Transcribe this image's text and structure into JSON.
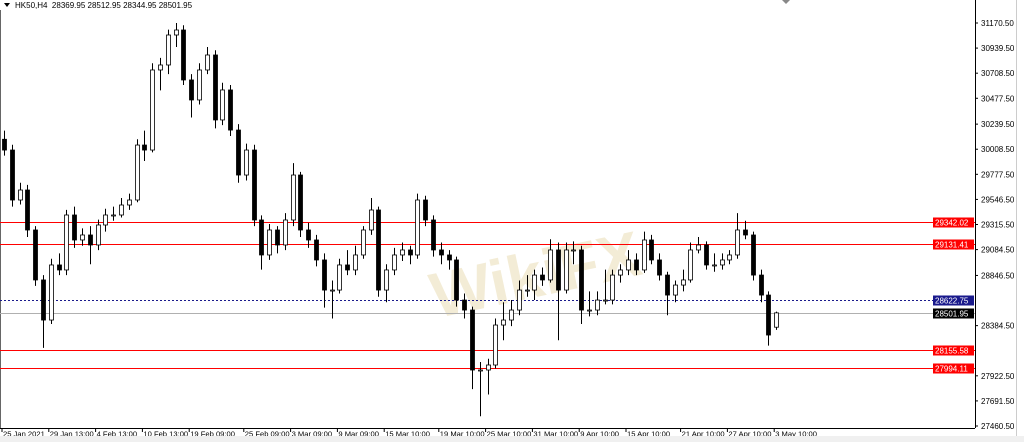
{
  "header": {
    "symbol": "HK50,H4",
    "ohlc": "28369.95 28512.95 28344.95 28501.95"
  },
  "watermark": "WikiFX",
  "colors": {
    "bull_body": "#ffffff",
    "bear_body": "#000000",
    "wick": "#000000",
    "level_line": "#ff0000",
    "ask_line": "#1a1a8c",
    "bid_line": "#b0b0b0"
  },
  "chart_data": {
    "type": "candlestick",
    "title": "HK50,H4",
    "ylim": [
      27460.5,
      31170.5
    ],
    "grid": false,
    "y_ticks": [
      "31170.50",
      "30939.50",
      "30708.50",
      "30477.50",
      "30239.50",
      "30008.50",
      "29777.50",
      "29546.50",
      "29315.50",
      "29084.50",
      "28846.50",
      "28384.50",
      "27922.50",
      "27691.50",
      "27460.50"
    ],
    "x_ticks": [
      {
        "bar": 0,
        "label": "25 Jan 2021"
      },
      {
        "bar": 6,
        "label": "29 Jan 13:00"
      },
      {
        "bar": 12,
        "label": "4 Feb 13:00"
      },
      {
        "bar": 18,
        "label": "10 Feb 13:00"
      },
      {
        "bar": 24,
        "label": "19 Feb 09:00"
      },
      {
        "bar": 31,
        "label": "25 Feb 09:00"
      },
      {
        "bar": 37,
        "label": "3 Mar 09:00"
      },
      {
        "bar": 43,
        "label": "9 Mar 09:00"
      },
      {
        "bar": 49,
        "label": "15 Mar 10:00"
      },
      {
        "bar": 56,
        "label": "19 Mar 10:00"
      },
      {
        "bar": 62,
        "label": "25 Mar 10:00"
      },
      {
        "bar": 68,
        "label": "31 Mar 10:00"
      },
      {
        "bar": 74,
        "label": "9 Apr 10:00"
      },
      {
        "bar": 80,
        "label": "15 Apr 10:00"
      },
      {
        "bar": 87,
        "label": "21 Apr 10:00"
      },
      {
        "bar": 93,
        "label": "27 Apr 10:00"
      },
      {
        "bar": 99,
        "label": "3 May 10:00"
      }
    ],
    "levels": [
      {
        "price": 29342.02,
        "label": "29342.02",
        "style": "level"
      },
      {
        "price": 29131.41,
        "label": "29131.41",
        "style": "level"
      },
      {
        "price": 28622.75,
        "label": "28622.75",
        "style": "ask"
      },
      {
        "price": 28501.95,
        "label": "28501.95",
        "style": "bid"
      },
      {
        "price": 28155.58,
        "label": "28155.58",
        "style": "level"
      },
      {
        "price": 27994.11,
        "label": "27994.11",
        "style": "level"
      }
    ],
    "candles_ohlc": [
      [
        30100,
        30180,
        29950,
        30001
      ],
      [
        30001,
        30050,
        29480,
        29541
      ],
      [
        29541,
        29700,
        29500,
        29633
      ],
      [
        29633,
        29680,
        29200,
        29265
      ],
      [
        29265,
        29300,
        28750,
        28805
      ],
      [
        28805,
        28850,
        28180,
        28436
      ],
      [
        28436,
        29000,
        28400,
        28943
      ],
      [
        28943,
        29050,
        28850,
        28897
      ],
      [
        28897,
        29450,
        28850,
        29403
      ],
      [
        29403,
        29480,
        29100,
        29173
      ],
      [
        29173,
        29280,
        29120,
        29219
      ],
      [
        29219,
        29300,
        28950,
        29127
      ],
      [
        29127,
        29360,
        29080,
        29311
      ],
      [
        29311,
        29460,
        29250,
        29403
      ],
      [
        29403,
        29480,
        29350,
        29403
      ],
      [
        29403,
        29560,
        29380,
        29495
      ],
      [
        29495,
        29600,
        29450,
        29541
      ],
      [
        29541,
        30100,
        29520,
        30047
      ],
      [
        30047,
        30180,
        29900,
        30001
      ],
      [
        30001,
        30800,
        29980,
        30738
      ],
      [
        30738,
        30850,
        30550,
        30784
      ],
      [
        30784,
        31110,
        30700,
        31060
      ],
      [
        31060,
        31170,
        30950,
        31106
      ],
      [
        31106,
        31150,
        30600,
        30646
      ],
      [
        30646,
        30700,
        30300,
        30462
      ],
      [
        30462,
        30800,
        30420,
        30738
      ],
      [
        30738,
        30950,
        30700,
        30876
      ],
      [
        30876,
        30920,
        30200,
        30278
      ],
      [
        30278,
        30620,
        30230,
        30554
      ],
      [
        30554,
        30600,
        30130,
        30185
      ],
      [
        30185,
        30240,
        29700,
        29771
      ],
      [
        29771,
        30060,
        29720,
        30001
      ],
      [
        30001,
        30050,
        29300,
        29357
      ],
      [
        29357,
        29400,
        28900,
        29035
      ],
      [
        29035,
        29320,
        28990,
        29265
      ],
      [
        29265,
        29300,
        29050,
        29127
      ],
      [
        29127,
        29420,
        29080,
        29357
      ],
      [
        29357,
        29880,
        29300,
        29771
      ],
      [
        29771,
        29800,
        29200,
        29265
      ],
      [
        29265,
        29330,
        29100,
        29173
      ],
      [
        29173,
        29220,
        28930,
        28989
      ],
      [
        28989,
        29050,
        28550,
        28712
      ],
      [
        28712,
        28800,
        28450,
        28712
      ],
      [
        28712,
        29000,
        28680,
        28943
      ],
      [
        28943,
        29080,
        28850,
        28897
      ],
      [
        28897,
        29120,
        28850,
        29035
      ],
      [
        29035,
        29300,
        29000,
        29265
      ],
      [
        29265,
        29560,
        29220,
        29449
      ],
      [
        29449,
        29480,
        28650,
        28712
      ],
      [
        28712,
        28950,
        28600,
        28897
      ],
      [
        28897,
        29100,
        28850,
        29035
      ],
      [
        29035,
        29150,
        28980,
        29081
      ],
      [
        29081,
        29120,
        28950,
        29035
      ],
      [
        29035,
        29600,
        29000,
        29541
      ],
      [
        29541,
        29580,
        29300,
        29357
      ],
      [
        29357,
        29400,
        29020,
        29081
      ],
      [
        29081,
        29150,
        28950,
        29035
      ],
      [
        29035,
        29080,
        28900,
        28989
      ],
      [
        28989,
        29020,
        28560,
        28620
      ],
      [
        28620,
        28680,
        28450,
        28528
      ],
      [
        28528,
        28560,
        27800,
        27976
      ],
      [
        27976,
        28050,
        27550,
        27976
      ],
      [
        27976,
        28080,
        27750,
        28022
      ],
      [
        28022,
        28450,
        27990,
        28390
      ],
      [
        28390,
        28600,
        28250,
        28436
      ],
      [
        28436,
        28620,
        28380,
        28528
      ],
      [
        28528,
        28800,
        28480,
        28712
      ],
      [
        28712,
        28850,
        28650,
        28712
      ],
      [
        28712,
        28900,
        28620,
        28850
      ],
      [
        28850,
        28920,
        28750,
        28805
      ],
      [
        28805,
        29180,
        28780,
        29081
      ],
      [
        29081,
        29150,
        28250,
        28712
      ],
      [
        28712,
        29150,
        28680,
        29081
      ],
      [
        29081,
        29160,
        28950,
        29081
      ],
      [
        29081,
        29120,
        28400,
        28528
      ],
      [
        28528,
        28700,
        28470,
        28528
      ],
      [
        28528,
        28700,
        28480,
        28620
      ],
      [
        28620,
        28900,
        28580,
        28620
      ],
      [
        28620,
        28900,
        28580,
        28850
      ],
      [
        28850,
        28950,
        28780,
        28897
      ],
      [
        28897,
        29080,
        28850,
        28989
      ],
      [
        28989,
        29050,
        28850,
        28897
      ],
      [
        28897,
        29250,
        28870,
        29173
      ],
      [
        29173,
        29220,
        28950,
        28989
      ],
      [
        28989,
        29050,
        28800,
        28850
      ],
      [
        28850,
        28880,
        28480,
        28666
      ],
      [
        28666,
        28800,
        28600,
        28758
      ],
      [
        28758,
        28900,
        28700,
        28805
      ],
      [
        28805,
        29150,
        28780,
        29081
      ],
      [
        29081,
        29200,
        29050,
        29127
      ],
      [
        29127,
        29160,
        28900,
        28943
      ],
      [
        28943,
        29050,
        28880,
        28943
      ],
      [
        28943,
        29050,
        28900,
        28989
      ],
      [
        28989,
        29080,
        28950,
        29035
      ],
      [
        29035,
        29420,
        29000,
        29265
      ],
      [
        29265,
        29350,
        29180,
        29219
      ],
      [
        29219,
        29250,
        28800,
        28850
      ],
      [
        28850,
        28900,
        28600,
        28666
      ],
      [
        28666,
        28700,
        28200,
        28298
      ],
      [
        28369.95,
        28512.95,
        28344.95,
        28501.95
      ]
    ]
  }
}
